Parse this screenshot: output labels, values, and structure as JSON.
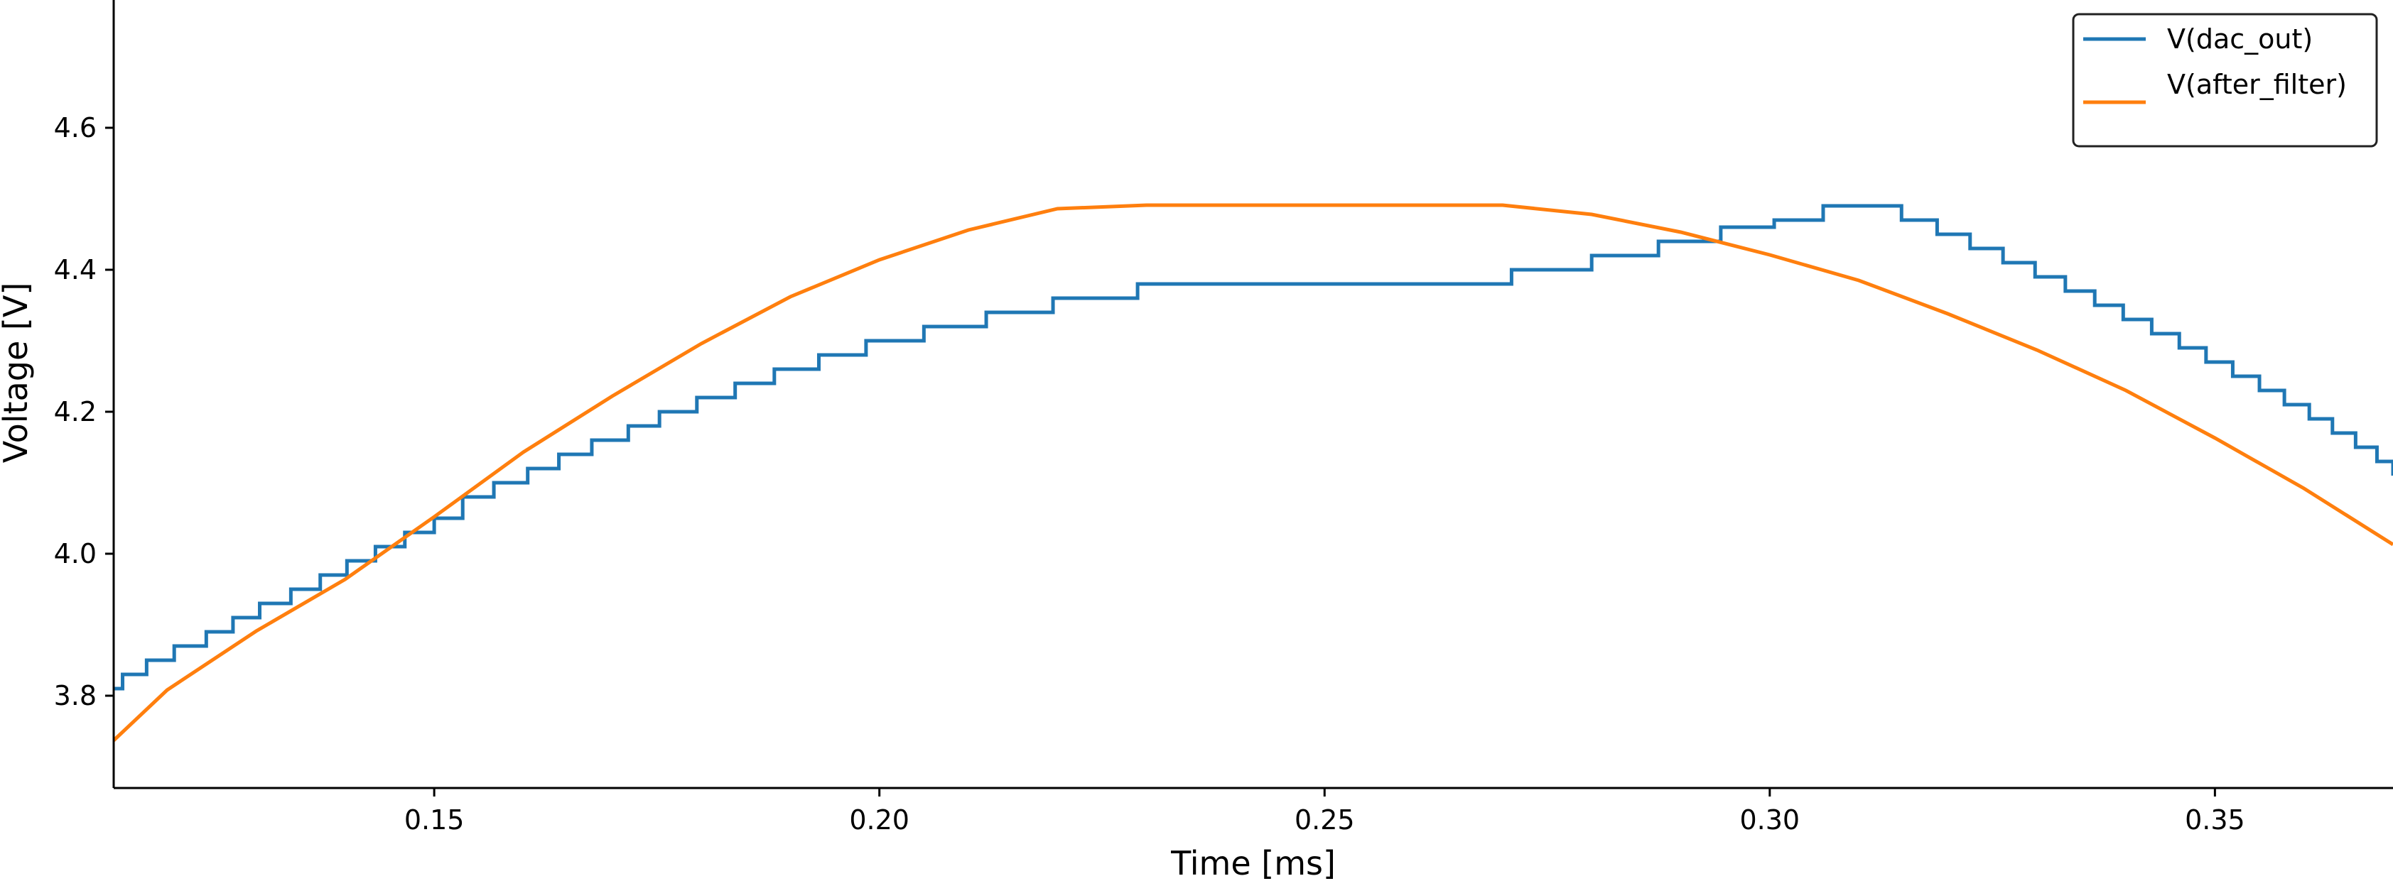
{
  "chart_data": {
    "type": "line",
    "xlabel": "Time [ms]",
    "ylabel": "Voltage [V]",
    "xlim": [
      0.114,
      0.37
    ],
    "ylim": [
      3.67,
      4.78
    ],
    "xticks": [
      0.15,
      0.2,
      0.25,
      0.3,
      0.35
    ],
    "xtick_labels": [
      "0.15",
      "0.20",
      "0.25",
      "0.30",
      "0.35"
    ],
    "yticks": [
      3.8,
      4.0,
      4.2,
      4.4,
      4.6
    ],
    "ytick_labels": [
      "3.8",
      "4.0",
      "4.2",
      "4.4",
      "4.6"
    ],
    "grid": false,
    "legend": "top-right",
    "series": [
      {
        "name": "V(dac_out)",
        "color": "#1f77b4",
        "style": "step",
        "x": [
          0.114,
          0.115,
          0.1177,
          0.1208,
          0.1244,
          0.1274,
          0.1304,
          0.1339,
          0.1372,
          0.1402,
          0.1434,
          0.1467,
          0.15,
          0.1532,
          0.1567,
          0.1605,
          0.164,
          0.1677,
          0.1718,
          0.1753,
          0.1795,
          0.1838,
          0.1882,
          0.1932,
          0.1985,
          0.205,
          0.212,
          0.2195,
          0.229,
          0.271,
          0.28,
          0.2875,
          0.2945,
          0.3005,
          0.306,
          0.3105,
          0.3148,
          0.3188,
          0.3225,
          0.3262,
          0.3298,
          0.3332,
          0.3365,
          0.3397,
          0.3429,
          0.346,
          0.349,
          0.352,
          0.355,
          0.3578,
          0.3606,
          0.3632,
          0.3658,
          0.3682,
          0.37
        ],
        "values": [
          3.81,
          3.83,
          3.85,
          3.87,
          3.89,
          3.91,
          3.93,
          3.95,
          3.97,
          3.99,
          4.01,
          4.03,
          4.05,
          4.08,
          4.1,
          4.12,
          4.14,
          4.16,
          4.18,
          4.2,
          4.22,
          4.24,
          4.26,
          4.28,
          4.3,
          4.32,
          4.34,
          4.36,
          4.38,
          4.4,
          4.42,
          4.44,
          4.46,
          4.47,
          4.49,
          4.49,
          4.47,
          4.45,
          4.43,
          4.41,
          4.39,
          4.37,
          4.35,
          4.33,
          4.31,
          4.29,
          4.27,
          4.25,
          4.23,
          4.21,
          4.19,
          4.17,
          4.15,
          4.13,
          4.11
        ]
      },
      {
        "name": "V(after_filter)",
        "color": "#ff7f0e",
        "style": "line",
        "x": [
          0.114,
          0.12,
          0.13,
          0.14,
          0.15,
          0.16,
          0.17,
          0.18,
          0.19,
          0.2,
          0.21,
          0.22,
          0.23,
          0.24,
          0.25,
          0.26,
          0.27,
          0.28,
          0.29,
          0.3,
          0.31,
          0.32,
          0.33,
          0.34,
          0.35,
          0.36,
          0.37
        ],
        "values": [
          3.737,
          3.808,
          3.891,
          3.964,
          4.052,
          4.143,
          4.222,
          4.296,
          4.362,
          4.414,
          4.456,
          4.486,
          4.491,
          4.491,
          4.491,
          4.491,
          4.491,
          4.478,
          4.453,
          4.421,
          4.385,
          4.338,
          4.287,
          4.23,
          4.163,
          4.092,
          4.013
        ]
      }
    ]
  }
}
